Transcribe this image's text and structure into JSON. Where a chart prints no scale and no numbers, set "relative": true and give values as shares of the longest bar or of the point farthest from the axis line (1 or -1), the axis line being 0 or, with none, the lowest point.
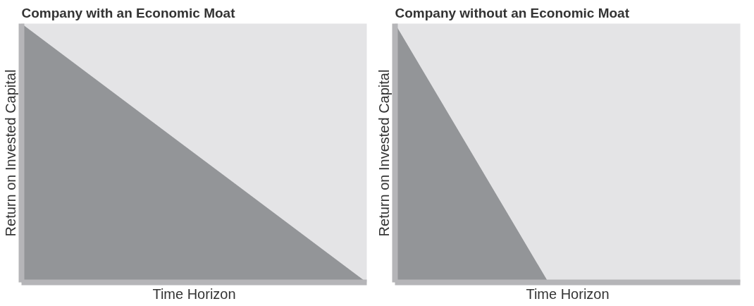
{
  "chart_data": [
    {
      "type": "area",
      "title": "Company with an Economic Moat",
      "xlabel": "Time Horizon",
      "ylabel": "Return on Invested Capital",
      "categories": [
        null,
        null
      ],
      "relative": true,
      "tick_labels": false,
      "grid": false,
      "series": [
        {
          "color": "#939598",
          "values": [
            1,
            0
          ]
        }
      ]
    },
    {
      "type": "area",
      "title": "Company without an Economic Moat",
      "xlabel": "Time Horizon",
      "ylabel": "Return on Invested Capital",
      "categories": [
        null,
        null,
        null,
        null,
        null,
        null,
        null,
        null,
        null,
        null
      ],
      "relative": true,
      "tick_labels": false,
      "grid": false,
      "series": [
        {
          "color": "#939598",
          "values": [
            1,
            0.75,
            0.5,
            0.25,
            0,
            0,
            0,
            0,
            0,
            0
          ]
        }
      ]
    }
  ]
}
